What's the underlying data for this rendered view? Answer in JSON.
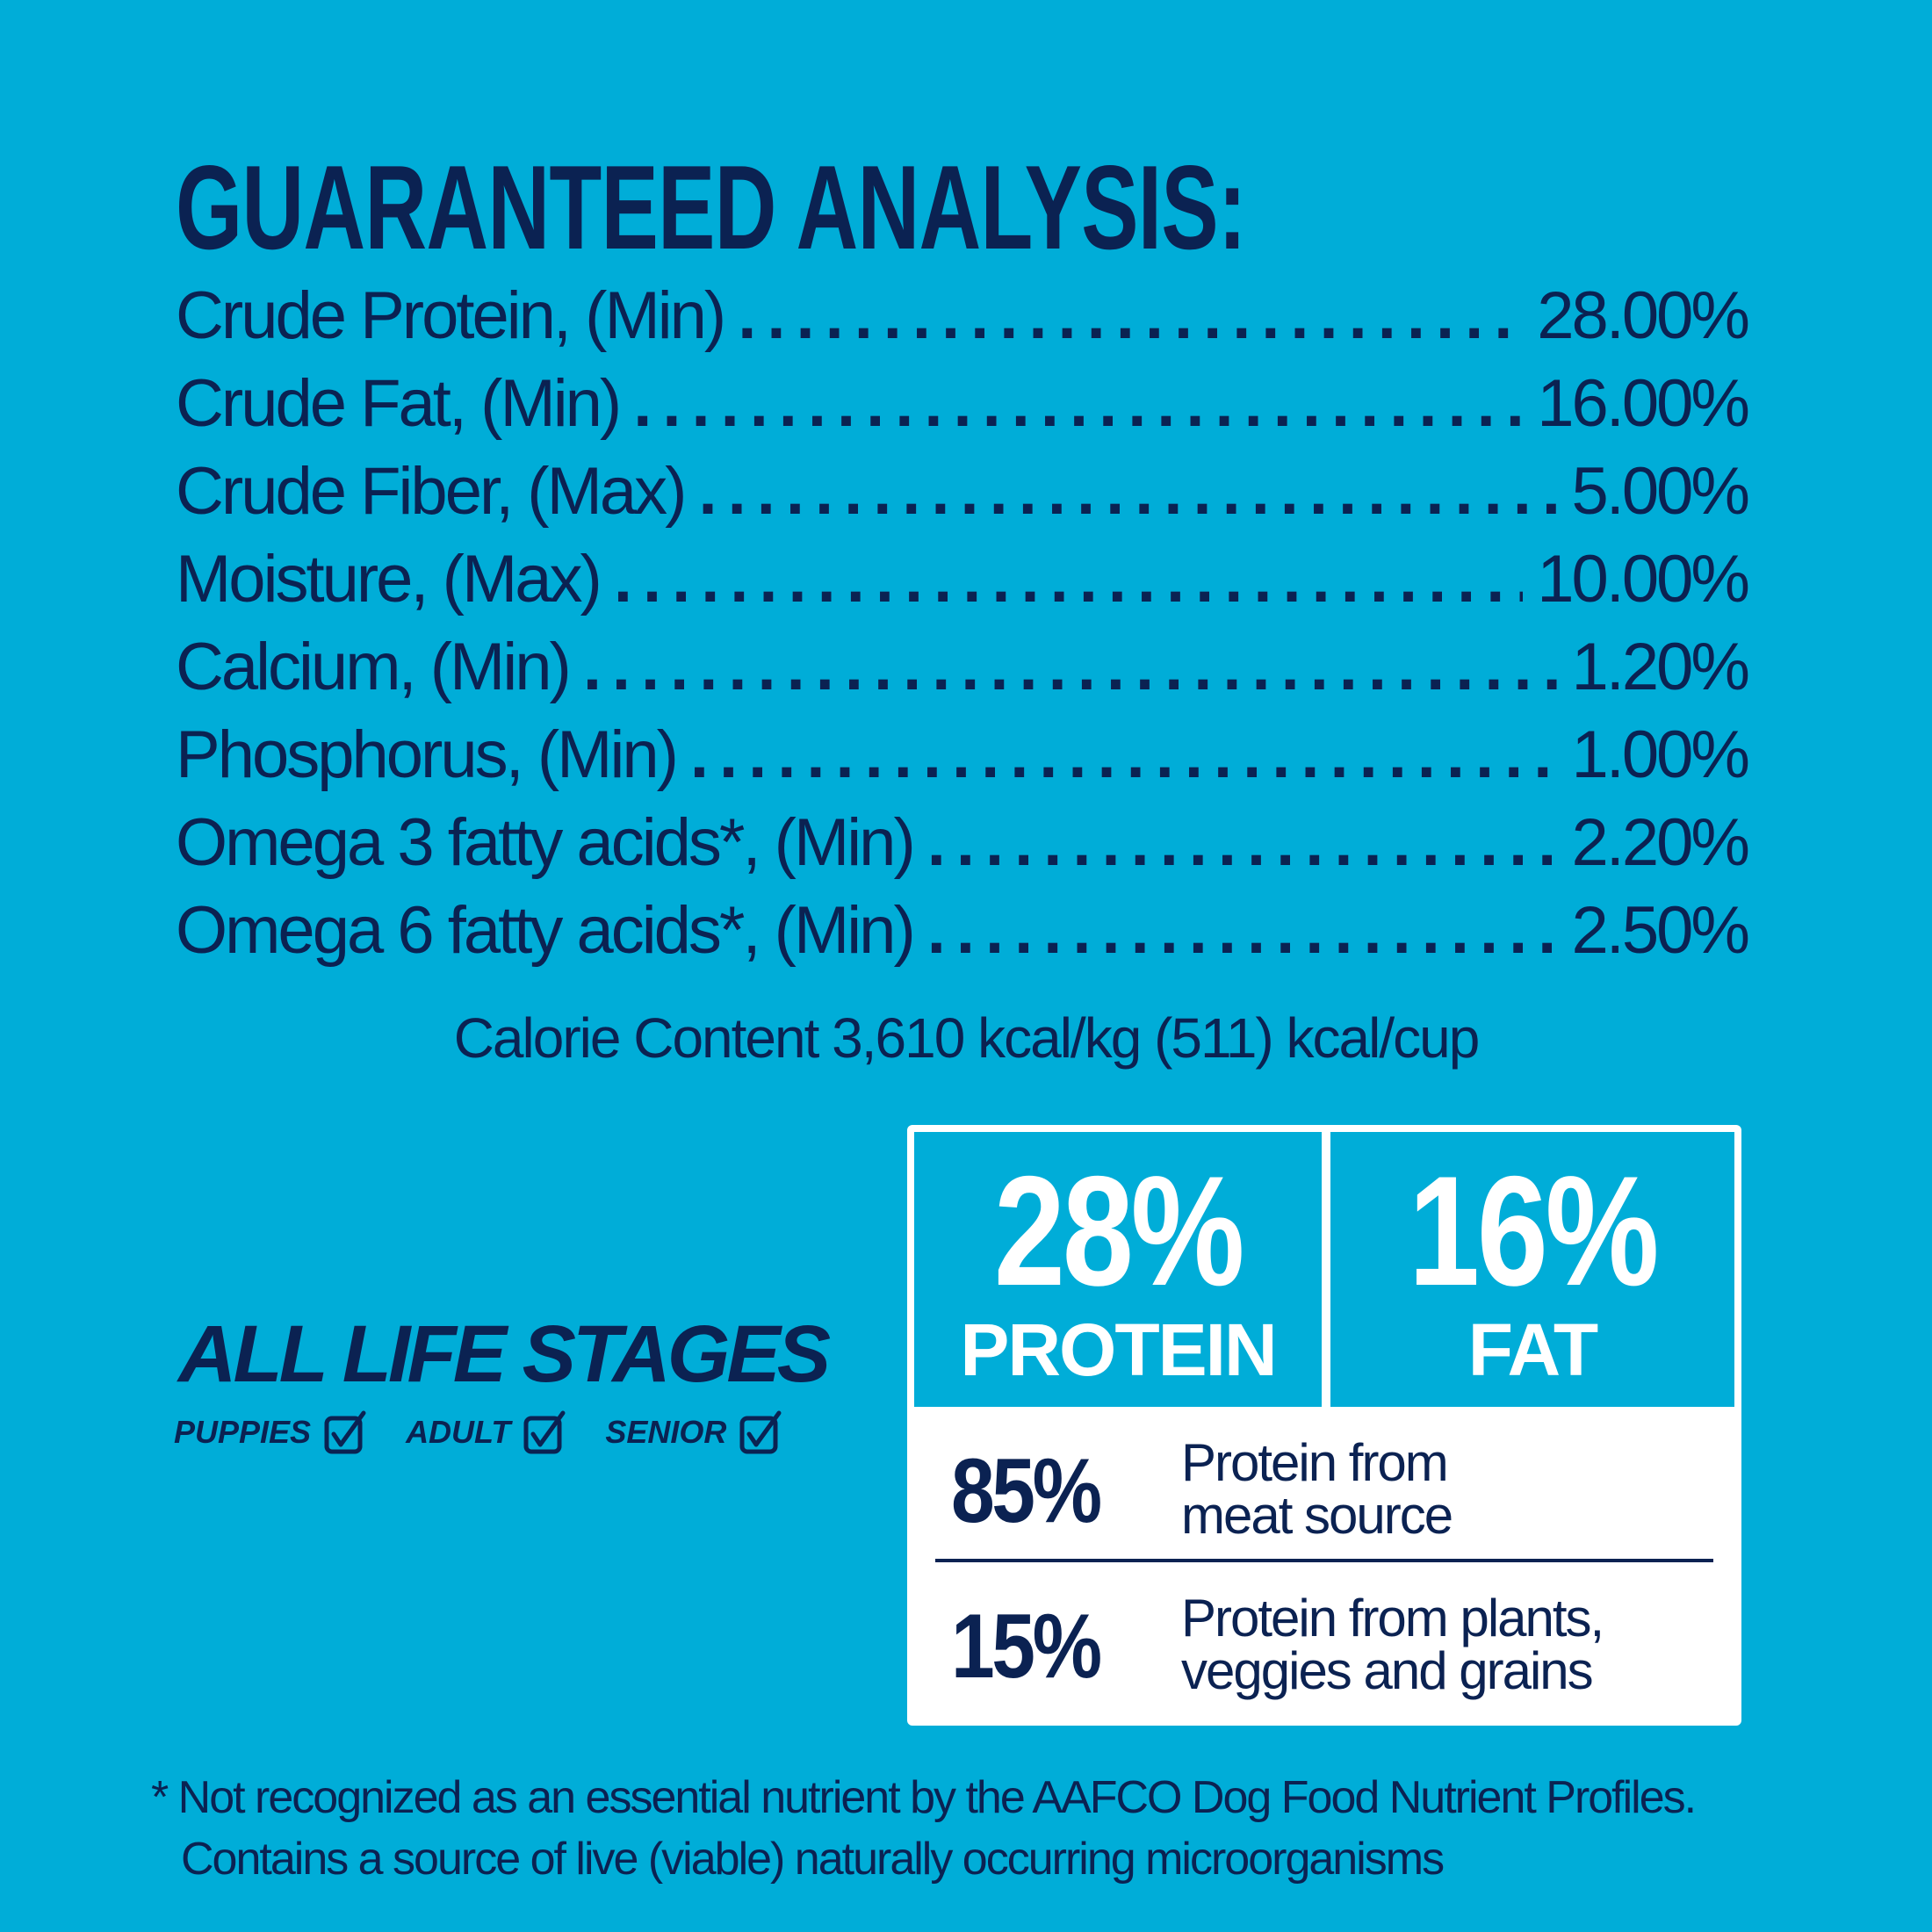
{
  "heading": "GUARANTEED ANALYSIS:",
  "analysis": [
    {
      "label": "Crude Protein, (Min)",
      "value": "28.00%"
    },
    {
      "label": "Crude Fat, (Min)",
      "value": "16.00%"
    },
    {
      "label": "Crude Fiber, (Max)",
      "value": "5.00%"
    },
    {
      "label": "Moisture, (Max)",
      "value": "10.00%"
    },
    {
      "label": "Calcium, (Min)",
      "value": "1.20%"
    },
    {
      "label": "Phosphorus, (Min)",
      "value": "1.00%"
    },
    {
      "label": "Omega 3 fatty acids*, (Min)",
      "value": "2.20%"
    },
    {
      "label": "Omega 6 fatty acids*, (Min)",
      "value": "2.50%"
    }
  ],
  "calorie": "Calorie Content 3,610 kcal/kg (511) kcal/cup",
  "life_stages": {
    "title": "ALL LIFE STAGES",
    "items": [
      "PUPPIES",
      "ADULT",
      "SENIOR"
    ],
    "checked": [
      true,
      true,
      true
    ],
    "icon": "checkbox-checked-icon"
  },
  "panel": {
    "protein": {
      "value": "28%",
      "label": "PROTEIN"
    },
    "fat": {
      "value": "16%",
      "label": "FAT"
    },
    "meat": {
      "value": "85%",
      "line1": "Protein from",
      "line2": "meat source"
    },
    "plants": {
      "value": "15%",
      "line1": "Protein from plants,",
      "line2": "veggies and grains"
    }
  },
  "footnote": {
    "line1": "* Not recognized as an essential nutrient by the AAFCO Dog Food Nutrient Profiles.",
    "line2": "Contains a source of live (viable) naturally occurring microorganisms"
  },
  "colors": {
    "background": "#00ADD8",
    "text": "#0B2252",
    "panel": "#FFFFFF",
    "highlight_text": "#FFFFFF"
  }
}
